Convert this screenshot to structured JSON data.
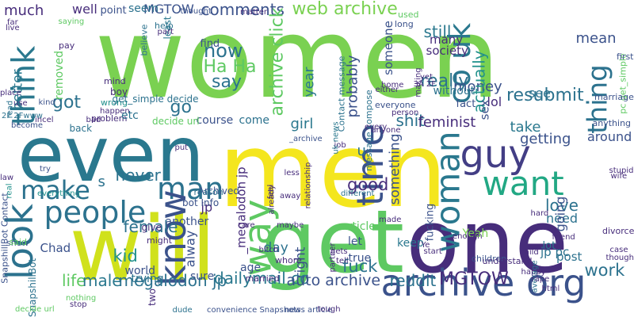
{
  "palette": {
    "background": "#ffffff",
    "colors": [
      "#440154",
      "#472d7b",
      "#3b528b",
      "#2c728e",
      "#21918c",
      "#28ae80",
      "#5ec962",
      "#addc30",
      "#fde725"
    ]
  },
  "words": [
    {
      "text": "women",
      "color": "#7ad151",
      "orientation": "horizontal"
    },
    {
      "text": "even",
      "color": "#2a788e",
      "orientation": "horizontal"
    },
    {
      "text": "men",
      "color": "#f4e61e",
      "orientation": "horizontal"
    },
    {
      "text": "one",
      "color": "#472d7b",
      "orientation": "horizontal"
    },
    {
      "text": "will",
      "color": "#d0e11c",
      "orientation": "horizontal"
    },
    {
      "text": "get",
      "color": "#5ec962",
      "orientation": "horizontal"
    },
    {
      "text": "people",
      "color": "#2c728e",
      "orientation": "horizontal"
    },
    {
      "text": "guy",
      "color": "#433e85",
      "orientation": "horizontal"
    },
    {
      "text": "archive org",
      "color": "#3b528b",
      "orientation": "horizontal"
    },
    {
      "text": "want",
      "color": "#22a884",
      "orientation": "horizontal"
    },
    {
      "text": "make",
      "color": "#2c728e",
      "orientation": "horizontal"
    },
    {
      "text": "man",
      "color": "#2c728e",
      "orientation": "horizontal"
    },
    {
      "text": "look",
      "color": "#2c728e",
      "orientation": "vertical"
    },
    {
      "text": "think",
      "color": "#2a788e",
      "orientation": "vertical"
    },
    {
      "text": "know",
      "color": "#3b528b",
      "orientation": "vertical"
    },
    {
      "text": "way",
      "color": "#5ec962",
      "orientation": "vertical"
    },
    {
      "text": "time",
      "color": "#3b528b",
      "orientation": "vertical"
    },
    {
      "text": "woman",
      "color": "#2a788e",
      "orientation": "vertical"
    },
    {
      "text": "thing",
      "color": "#2c728e",
      "orientation": "vertical"
    },
    {
      "text": "co uk",
      "color": "#2a788e",
      "orientation": "vertical"
    },
    {
      "text": "web archive",
      "color": "#7ad151",
      "orientation": "horizontal"
    },
    {
      "text": "MGTOW",
      "color": "#3b528b",
      "orientation": "horizontal"
    },
    {
      "text": "comments",
      "color": "#3b528b",
      "orientation": "horizontal"
    },
    {
      "text": "archive click",
      "color": "#5ec962",
      "orientation": "vertical"
    },
    {
      "text": "resubmit",
      "color": "#2c728e",
      "orientation": "horizontal"
    },
    {
      "text": "mean",
      "color": "#3b528b",
      "orientation": "horizontal"
    },
    {
      "text": "pc get_simple",
      "color": "#5ec962",
      "orientation": "vertical"
    },
    {
      "text": "really",
      "color": "#2c728e",
      "orientation": "horizontal"
    },
    {
      "text": "money",
      "color": "#3b528b",
      "orientation": "horizontal"
    },
    {
      "text": "actually",
      "color": "#21918c",
      "orientation": "vertical"
    },
    {
      "text": "fact",
      "color": "#3b528b",
      "orientation": "horizontal"
    },
    {
      "text": "Ha Ha",
      "color": "#5ec962",
      "orientation": "horizontal"
    },
    {
      "text": "now",
      "color": "#2c728e",
      "orientation": "horizontal"
    },
    {
      "text": "say",
      "color": "#2c728e",
      "orientation": "horizontal"
    },
    {
      "text": "go",
      "color": "#2c728e",
      "orientation": "horizontal"
    },
    {
      "text": "got",
      "color": "#2c728e",
      "orientation": "horizontal"
    },
    {
      "text": "much",
      "color": "#472d7b",
      "orientation": "horizontal"
    },
    {
      "text": "well",
      "color": "#472d7b",
      "orientation": "horizontal"
    },
    {
      "text": "better",
      "color": "#2a788e",
      "orientation": "vertical"
    },
    {
      "text": "removed",
      "color": "#5ec962",
      "orientation": "vertical"
    },
    {
      "text": "lol",
      "color": "#472d7b",
      "orientation": "horizontal"
    },
    {
      "text": "see",
      "color": "#2c728e",
      "orientation": "horizontal"
    },
    {
      "text": "still",
      "color": "#2a788e",
      "orientation": "horizontal"
    },
    {
      "text": "someone",
      "color": "#3b528b",
      "orientation": "vertical"
    },
    {
      "text": "year",
      "color": "#2a788e",
      "orientation": "vertical"
    },
    {
      "text": "probably",
      "color": "#3b528b",
      "orientation": "vertical"
    },
    {
      "text": "girl",
      "color": "#2a788e",
      "orientation": "horizontal"
    },
    {
      "text": "shit",
      "color": "#2c728e",
      "orientation": "horizontal"
    },
    {
      "text": "sex",
      "color": "#3b528b",
      "orientation": "vertical"
    },
    {
      "text": "take",
      "color": "#2a788e",
      "orientation": "horizontal"
    },
    {
      "text": "getting",
      "color": "#3b528b",
      "orientation": "horizontal"
    },
    {
      "text": "around",
      "color": "#3b528b",
      "orientation": "horizontal"
    },
    {
      "text": "anything",
      "color": "#3b528b",
      "orientation": "horizontal"
    },
    {
      "text": "feminist",
      "color": "#472d7b",
      "orientation": "horizontal"
    },
    {
      "text": "u",
      "color": "#2c728e",
      "orientation": "horizontal"
    },
    {
      "text": "good",
      "color": "#472d7b",
      "orientation": "horizontal"
    },
    {
      "text": "something",
      "color": "#3b528b",
      "orientation": "vertical"
    },
    {
      "text": "fucking",
      "color": "#3b528b",
      "orientation": "vertical"
    },
    {
      "text": "love",
      "color": "#2c728e",
      "orientation": "horizontal"
    },
    {
      "text": "need",
      "color": "#2c728e",
      "orientation": "horizontal"
    },
    {
      "text": "going",
      "color": "#3b528b",
      "orientation": "vertical"
    },
    {
      "text": "never",
      "color": "#2c728e",
      "orientation": "horizontal"
    },
    {
      "text": "s",
      "color": "#2c728e",
      "orientation": "horizontal"
    },
    {
      "text": "female",
      "color": "#2c728e",
      "orientation": "horizontal"
    },
    {
      "text": "kid",
      "color": "#21918c",
      "orientation": "horizontal"
    },
    {
      "text": "alway",
      "color": "#3b528b",
      "orientation": "vertical"
    },
    {
      "text": "day",
      "color": "#2c728e",
      "orientation": "horizontal"
    },
    {
      "text": "right",
      "color": "#3b528b",
      "orientation": "vertical"
    },
    {
      "text": "jp",
      "color": "#472d7b",
      "orientation": "horizontal"
    },
    {
      "text": "_megalodon jp",
      "color": "#472d7b",
      "orientation": "vertical"
    },
    {
      "text": "fuck",
      "color": "#2c728e",
      "orientation": "horizontal"
    },
    {
      "text": "work",
      "color": "#2c728e",
      "orientation": "horizontal"
    },
    {
      "text": "life",
      "color": "#5ec962",
      "orientation": "horizontal"
    },
    {
      "text": "male",
      "color": "#2a788e",
      "orientation": "horizontal"
    },
    {
      "text": "megalodon jp",
      "color": "#2c728e",
      "orientation": "horizontal"
    },
    {
      "text": "dailymail co",
      "color": "#2a788e",
      "orientation": "horizontal"
    },
    {
      "text": "auto archive",
      "color": "#3b528b",
      "orientation": "horizontal"
    },
    {
      "text": "reddit",
      "color": "#2c728e",
      "orientation": "horizontal"
    },
    {
      "text": "MGTOW",
      "color": "#472d7b",
      "orientation": "horizontal"
    },
    {
      "text": "jp pc",
      "color": "#2c728e",
      "orientation": "horizontal"
    },
    {
      "text": "post",
      "color": "#2c728e",
      "orientation": "horizontal"
    },
    {
      "text": "lot",
      "color": "#2a788e",
      "orientation": "horizontal"
    },
    {
      "text": "Yeah",
      "color": "#7ad151",
      "orientation": "horizontal"
    },
    {
      "text": "let",
      "color": "#3b528b",
      "orientation": "horizontal"
    },
    {
      "text": "true",
      "color": "#3b528b",
      "orientation": "horizontal"
    },
    {
      "text": "keep",
      "color": "#2a788e",
      "orientation": "horizontal"
    },
    {
      "text": "article",
      "color": "#5ec962",
      "orientation": "horizontal"
    },
    {
      "text": "age",
      "color": "#3b528b",
      "orientation": "horizontal"
    },
    {
      "text": "sure",
      "color": "#3b528b",
      "orientation": "horizontal"
    },
    {
      "text": "world",
      "color": "#3b528b",
      "orientation": "horizontal"
    },
    {
      "text": "trying",
      "color": "#2c728e",
      "orientation": "horizontal"
    },
    {
      "text": "Chad",
      "color": "#3b528b",
      "orientation": "horizontal"
    },
    {
      "text": "give",
      "color": "#472d7b",
      "orientation": "horizontal"
    },
    {
      "text": "another",
      "color": "#3b528b",
      "orientation": "horizontal"
    },
    {
      "text": "course",
      "color": "#3b528b",
      "orientation": "horizontal"
    },
    {
      "text": "come",
      "color": "#2c728e",
      "orientation": "horizontal"
    },
    {
      "text": "least",
      "color": "#2a788e",
      "orientation": "vertical"
    },
    {
      "text": "find",
      "color": "#3b528b",
      "orientation": "horizontal"
    },
    {
      "text": "seem",
      "color": "#2c728e",
      "orientation": "horizontal"
    },
    {
      "text": "point",
      "color": "#3b528b",
      "orientation": "horizontal"
    },
    {
      "text": "thought",
      "color": "#3b528b",
      "orientation": "horizontal"
    },
    {
      "text": "many",
      "color": "#472d7b",
      "orientation": "horizontal"
    },
    {
      "text": "society",
      "color": "#472d7b",
      "orientation": "horizontal"
    },
    {
      "text": "without",
      "color": "#2c728e",
      "orientation": "horizontal"
    },
    {
      "text": "Contact message",
      "color": "#2c728e",
      "orientation": "vertical"
    },
    {
      "text": "message compose",
      "color": "#2c728e",
      "orientation": "vertical"
    },
    {
      "text": "marriage",
      "color": "#3b528b",
      "orientation": "horizontal"
    },
    {
      "text": "first",
      "color": "#3b528b",
      "orientation": "horizontal"
    },
    {
      "text": "problem",
      "color": "#472d7b",
      "orientation": "horizontal"
    },
    {
      "text": "happen",
      "color": "#472d7b",
      "orientation": "horizontal"
    },
    {
      "text": "wrong",
      "color": "#21918c",
      "orientation": "horizontal"
    },
    {
      "text": "mind",
      "color": "#472d7b",
      "orientation": "horizontal"
    },
    {
      "text": "boy",
      "color": "#472d7b",
      "orientation": "horizontal"
    },
    {
      "text": "etc",
      "color": "#2c728e",
      "orientation": "horizontal"
    },
    {
      "text": "back",
      "color": "#2c728e",
      "orientation": "horizontal"
    },
    {
      "text": "bad",
      "color": "#472d7b",
      "orientation": "horizontal"
    },
    {
      "text": "decide url",
      "color": "#5ec962",
      "orientation": "horizontal"
    },
    {
      "text": "get_simple decide",
      "color": "#2c728e",
      "orientation": "horizontal"
    },
    {
      "text": "believe",
      "color": "#2c728e",
      "orientation": "vertical"
    },
    {
      "text": "help",
      "color": "#2c728e",
      "orientation": "horizontal"
    },
    {
      "text": "part",
      "color": "#472d7b",
      "orientation": "horizontal"
    },
    {
      "text": "matter",
      "color": "#472d7b",
      "orientation": "horizontal"
    },
    {
      "text": "used",
      "color": "#5ec962",
      "orientation": "horizontal"
    },
    {
      "text": "long",
      "color": "#3b528b",
      "orientation": "horizontal"
    },
    {
      "text": "saying",
      "color": "#5ec962",
      "orientation": "horizontal"
    },
    {
      "text": "pay",
      "color": "#472d7b",
      "orientation": "horizontal"
    },
    {
      "text": "far",
      "color": "#472d7b",
      "orientation": "horizontal"
    },
    {
      "text": "live",
      "color": "#472d7b",
      "orientation": "horizontal"
    },
    {
      "text": "place",
      "color": "#472d7b",
      "orientation": "horizontal"
    },
    {
      "text": "read",
      "color": "#2c728e",
      "orientation": "vertical"
    },
    {
      "text": "use",
      "color": "#472d7b",
      "orientation": "horizontal"
    },
    {
      "text": "kind",
      "color": "#3b528b",
      "orientation": "horizontal"
    },
    {
      "text": "become",
      "color": "#3b528b",
      "orientation": "horizontal"
    },
    {
      "text": "incel",
      "color": "#472d7b",
      "orientation": "horizontal"
    },
    {
      "text": "2F 2Fwww",
      "color": "#2c728e",
      "orientation": "horizontal"
    },
    {
      "text": "try",
      "color": "#3b528b",
      "orientation": "horizontal"
    },
    {
      "text": "everything",
      "color": "#21918c",
      "orientation": "horizontal"
    },
    {
      "text": "law",
      "color": "#472d7b",
      "orientation": "horizontal"
    },
    {
      "text": "real",
      "color": "#21918c",
      "orientation": "vertical"
    },
    {
      "text": "show",
      "color": "#3b528b",
      "orientation": "horizontal"
    },
    {
      "text": "said",
      "color": "#5ec962",
      "orientation": "horizontal"
    },
    {
      "text": "SnapshillBot Contact",
      "color": "#3b528b",
      "orientation": "vertical"
    },
    {
      "text": "SnapshillBot",
      "color": "#2c728e",
      "orientation": "vertical"
    },
    {
      "text": "nothing",
      "color": "#5ec962",
      "orientation": "horizontal"
    },
    {
      "text": "decide url",
      "color": "#5ec962",
      "orientation": "horizontal"
    },
    {
      "text": "stop",
      "color": "#472d7b",
      "orientation": "horizontal"
    },
    {
      "text": "bot Info",
      "color": "#3b528b",
      "orientation": "horizontal"
    },
    {
      "text": "Archived",
      "color": "#3b528b",
      "orientation": "horizontal"
    },
    {
      "text": "reason",
      "color": "#2c728e",
      "orientation": "horizontal"
    },
    {
      "text": "put",
      "color": "#472d7b",
      "orientation": "horizontal"
    },
    {
      "text": "might",
      "color": "#472d7b",
      "orientation": "horizontal"
    },
    {
      "text": "two",
      "color": "#472d7b",
      "orientation": "vertical"
    },
    {
      "text": "dude",
      "color": "#2c728e",
      "orientation": "horizontal"
    },
    {
      "text": "convenience Snapshots",
      "color": "#3b528b",
      "orientation": "horizontal"
    },
    {
      "text": "news article",
      "color": "#3b528b",
      "orientation": "horizontal"
    },
    {
      "text": "tough",
      "color": "#472d7b",
      "orientation": "horizontal"
    },
    {
      "text": "married",
      "color": "#472d7b",
      "orientation": "horizontal"
    },
    {
      "text": "whore",
      "color": "#472d7b",
      "orientation": "horizontal"
    },
    {
      "text": "bitch",
      "color": "#472d7b",
      "orientation": "horizontal"
    },
    {
      "text": "care",
      "color": "#472d7b",
      "orientation": "horizontal"
    },
    {
      "text": "maybe",
      "color": "#472d7b",
      "orientation": "horizontal"
    },
    {
      "text": "already",
      "color": "#472d7b",
      "orientation": "vertical"
    },
    {
      "text": "away",
      "color": "#472d7b",
      "orientation": "horizontal"
    },
    {
      "text": "feel",
      "color": "#472d7b",
      "orientation": "vertical"
    },
    {
      "text": "less",
      "color": "#472d7b",
      "orientation": "horizontal"
    },
    {
      "text": "relationship",
      "color": "#472d7b",
      "orientation": "vertical"
    },
    {
      "text": "_archive",
      "color": "#3b528b",
      "orientation": "horizontal"
    },
    {
      "text": "job",
      "color": "#472d7b",
      "orientation": "horizontal"
    },
    {
      "text": "uk news",
      "color": "#2a788e",
      "orientation": "vertical"
    },
    {
      "text": "every",
      "color": "#472d7b",
      "orientation": "horizontal"
    },
    {
      "text": "everyone",
      "color": "#3b528b",
      "orientation": "horizontal"
    },
    {
      "text": "person",
      "color": "#472d7b",
      "orientation": "horizontal"
    },
    {
      "text": "anyone",
      "color": "#472d7b",
      "orientation": "horizontal"
    },
    {
      "text": "different",
      "color": "#2c728e",
      "orientation": "horizontal"
    },
    {
      "text": "made",
      "color": "#472d7b",
      "orientation": "horizontal"
    },
    {
      "text": "gets",
      "color": "#472d7b",
      "orientation": "horizontal"
    },
    {
      "text": "tell",
      "color": "#472d7b",
      "orientation": "horizontal"
    },
    {
      "text": "partner",
      "color": "#472d7b",
      "orientation": "vertical"
    },
    {
      "text": "either",
      "color": "#472d7b",
      "orientation": "horizontal"
    },
    {
      "text": "yet",
      "color": "#472d7b",
      "orientation": "horizontal"
    },
    {
      "text": "home",
      "color": "#472d7b",
      "orientation": "horizontal"
    },
    {
      "text": "making",
      "color": "#472d7b",
      "orientation": "vertical"
    },
    {
      "text": "3A 2F",
      "color": "#472d7b",
      "orientation": "horizontal"
    },
    {
      "text": "Ye",
      "color": "#472d7b",
      "orientation": "horizontal"
    },
    {
      "text": "enough",
      "color": "#472d7b",
      "orientation": "horizontal"
    },
    {
      "text": "start",
      "color": "#472d7b",
      "orientation": "horizontal"
    },
    {
      "text": "children",
      "color": "#3b528b",
      "orientation": "horizontal"
    },
    {
      "text": "understand",
      "color": "#472d7b",
      "orientation": "horizontal"
    },
    {
      "text": "happy",
      "color": "#472d7b",
      "orientation": "horizontal"
    },
    {
      "text": "average",
      "color": "#2c728e",
      "orientation": "vertical"
    },
    {
      "text": "html",
      "color": "#472d7b",
      "orientation": "horizontal"
    },
    {
      "text": "child",
      "color": "#472d7b",
      "orientation": "horizontal"
    },
    {
      "text": "hard",
      "color": "#472d7b",
      "orientation": "horizontal"
    },
    {
      "text": "friend",
      "color": "#472d7b",
      "orientation": "horizontal"
    },
    {
      "text": "rape",
      "color": "#472d7b",
      "orientation": "horizontal"
    },
    {
      "text": "wife",
      "color": "#472d7b",
      "orientation": "horizontal"
    },
    {
      "text": "stupid",
      "color": "#472d7b",
      "orientation": "horizontal"
    },
    {
      "text": "divorce",
      "color": "#472d7b",
      "orientation": "horizontal"
    },
    {
      "text": "case",
      "color": "#472d7b",
      "orientation": "horizontal"
    },
    {
      "text": "though",
      "color": "#472d7b",
      "orientation": "horizontal"
    }
  ]
}
